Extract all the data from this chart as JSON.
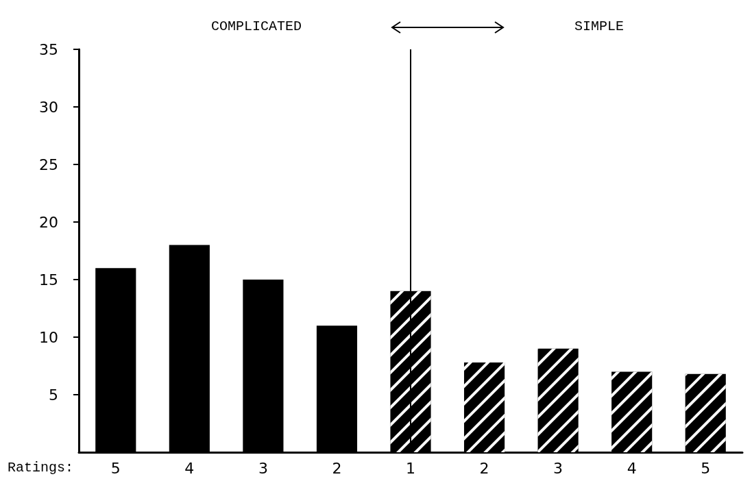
{
  "chart_data": {
    "type": "bar",
    "xlabel": "Ratings:",
    "categories": [
      "5",
      "4",
      "3",
      "2",
      "1",
      "2",
      "3",
      "4",
      "5"
    ],
    "stacked": true,
    "series": [
      {
        "color": "#000000",
        "values": [
          16,
          18,
          15,
          11,
          null,
          null,
          null,
          null,
          null
        ]
      },
      {
        "color": "#000000",
        "values": [
          null,
          null,
          null,
          null,
          14,
          7.8,
          9,
          7,
          6.8
        ]
      }
    ],
    "ylim": [
      0,
      35
    ],
    "yticks": [
      5,
      10,
      15,
      20,
      25,
      30,
      35
    ],
    "grid": false,
    "ref_lines": [
      {
        "axis": "x",
        "value": "1",
        "color": "#000000"
      }
    ],
    "annotations": [
      "COMPLICATED",
      "SIMPLE"
    ]
  }
}
